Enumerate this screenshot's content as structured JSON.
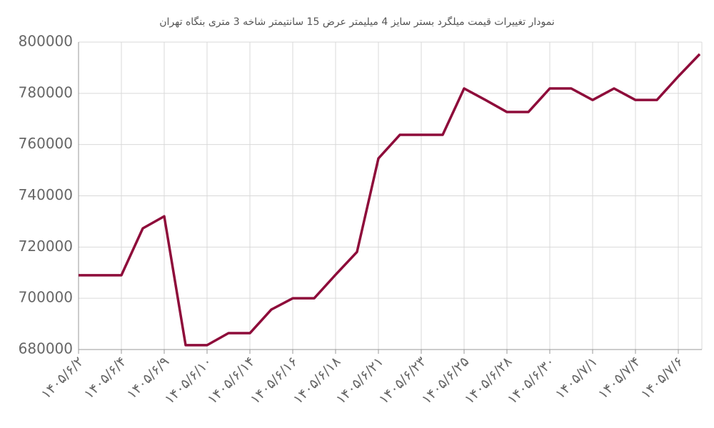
{
  "chart_data": {
    "type": "line",
    "title": "نمودار تغییرات قیمت میلگرد بستر سایز 4 میلیمتر عرض 15 سانتیمتر شاخه 3 متری بنگاه تهران",
    "categories": [
      "۱۴۰۵/۶/۲",
      null,
      "۱۴۰۵/۶/۴",
      null,
      "۱۴۰۵/۶/۹",
      null,
      "۱۴۰۵/۶/۱۰",
      null,
      "۱۴۰۵/۶/۱۴",
      null,
      "۱۴۰۵/۶/۱۶",
      null,
      "۱۴۰۵/۶/۱۸",
      null,
      "۱۴۰۵/۶/۲۱",
      null,
      "۱۴۰۵/۶/۲۳",
      null,
      "۱۴۰۵/۶/۲۵",
      null,
      "۱۴۰۵/۶/۲۸",
      null,
      "۱۴۰۵/۶/۳۰",
      null,
      "۱۴۰۵/۷/۱",
      null,
      "۱۴۰۵/۷/۴",
      null,
      "۱۴۰۵/۷/۶",
      null
    ],
    "values": [
      709000,
      709000,
      709000,
      727300,
      732000,
      681700,
      681700,
      686400,
      686400,
      695600,
      700000,
      700000,
      709200,
      718100,
      754600,
      763800,
      763800,
      763800,
      781900,
      777400,
      772700,
      772700,
      781900,
      781900,
      777400,
      781900,
      777400,
      777400,
      786600,
      795300
    ],
    "color": "#8e0c3a",
    "ylim": [
      680000,
      800000
    ],
    "yticks": [
      680000,
      700000,
      720000,
      740000,
      760000,
      780000,
      800000
    ],
    "grid": true
  }
}
